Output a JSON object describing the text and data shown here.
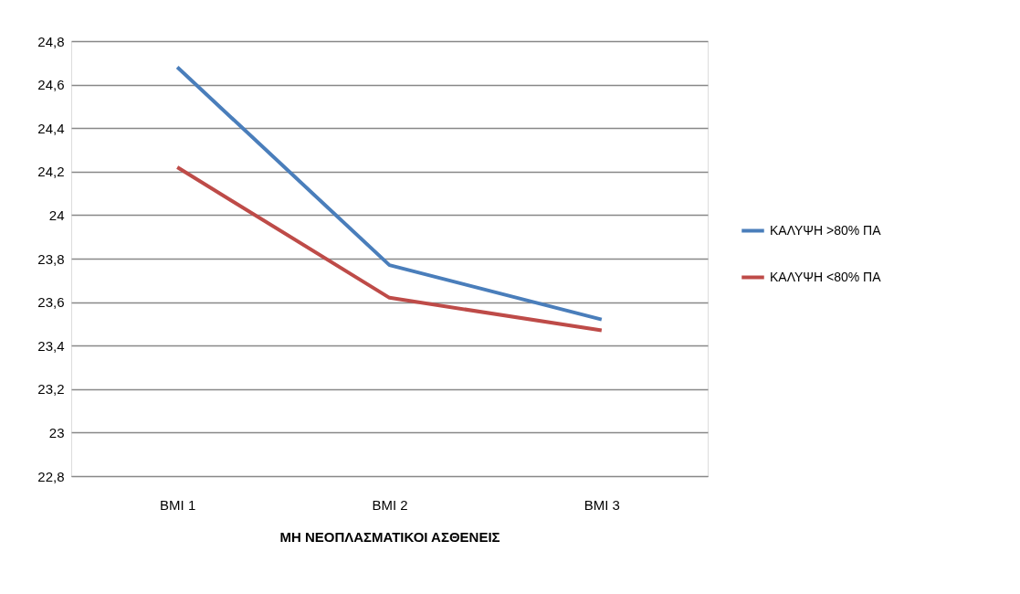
{
  "chart_data": {
    "type": "line",
    "xlabel": "ΜΗ ΝΕΟΠΛΑΣΜΑΤΙΚΟΙ ΑΣΘΕΝΕΙΣ",
    "categories": [
      "BMI 1",
      "BMI 2",
      "BMI 3"
    ],
    "series": [
      {
        "name": "ΚΑΛΥΨΗ >80% ΠΑ",
        "color": "#4a7ebb",
        "values": [
          24.68,
          23.77,
          23.52
        ]
      },
      {
        "name": "ΚΑΛΥΨΗ <80% ΠΑ",
        "color": "#be4b48",
        "values": [
          24.22,
          23.62,
          23.47
        ]
      }
    ],
    "ylim": [
      22.8,
      24.8
    ],
    "yticks": [
      {
        "value": 22.8,
        "label": "22,8"
      },
      {
        "value": 23,
        "label": "23"
      },
      {
        "value": 23.2,
        "label": "23,2"
      },
      {
        "value": 23.4,
        "label": "23,4"
      },
      {
        "value": 23.6,
        "label": "23,6"
      },
      {
        "value": 23.8,
        "label": "23,8"
      },
      {
        "value": 24,
        "label": "24"
      },
      {
        "value": 24.2,
        "label": "24,2"
      },
      {
        "value": 24.4,
        "label": "24,4"
      },
      {
        "value": 24.6,
        "label": "24,6"
      },
      {
        "value": 24.8,
        "label": "24,8"
      }
    ],
    "grid": "y",
    "legend": "right",
    "marker": "none",
    "line_style": "solid"
  }
}
